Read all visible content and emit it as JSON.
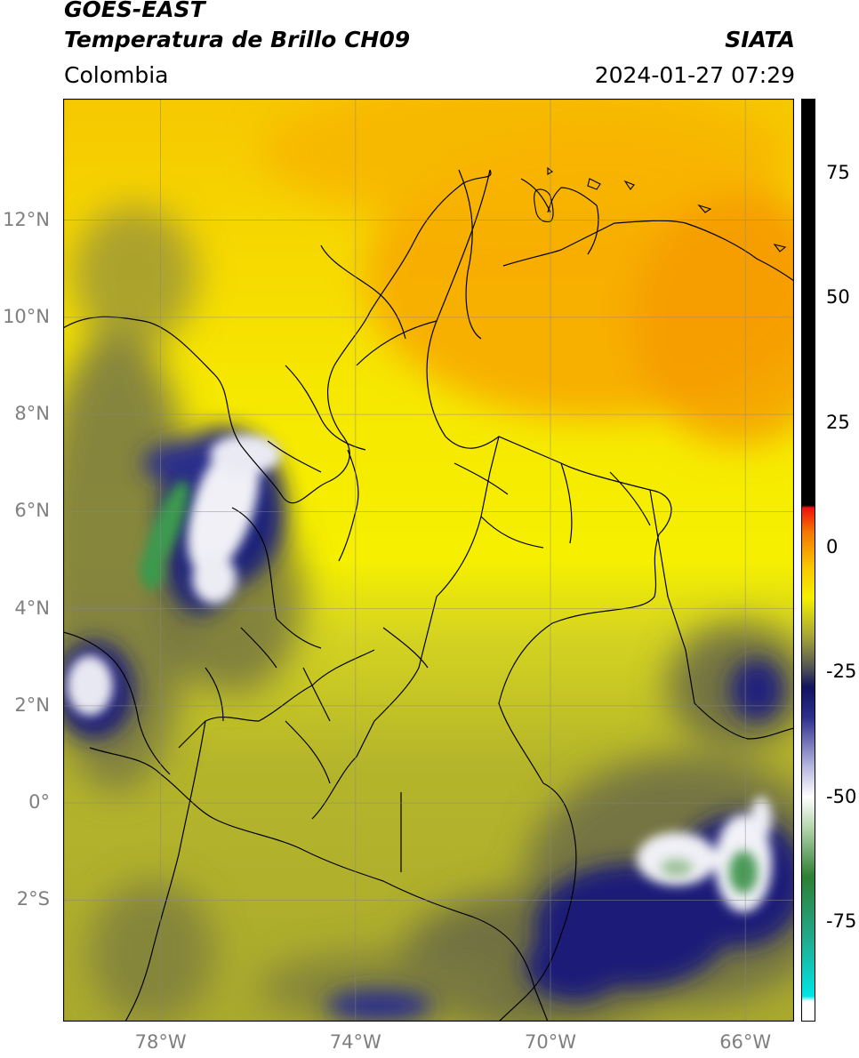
{
  "header": {
    "satellite": "GOES-EAST",
    "product": "Temperatura de Brillo CH09",
    "organization": "SIATA",
    "region": "Colombia",
    "timestamp": "2024-01-27 07:29"
  },
  "map": {
    "lon_range": [
      -80,
      -65
    ],
    "lat_range": [
      -4.5,
      14.5
    ],
    "lat_ticks": [
      {
        "value": 12,
        "label": "12°N"
      },
      {
        "value": 10,
        "label": "10°N"
      },
      {
        "value": 8,
        "label": "8°N"
      },
      {
        "value": 6,
        "label": "6°N"
      },
      {
        "value": 4,
        "label": "4°N"
      },
      {
        "value": 2,
        "label": "2°N"
      },
      {
        "value": 0,
        "label": "0°"
      },
      {
        "value": -2,
        "label": "2°S"
      }
    ],
    "lon_ticks": [
      {
        "value": -78,
        "label": "78°W"
      },
      {
        "value": -74,
        "label": "74°W"
      },
      {
        "value": -70,
        "label": "70°W"
      },
      {
        "value": -66,
        "label": "66°W"
      }
    ],
    "grid": true,
    "colors": {
      "warm_orange": "#f7a800",
      "yellow": "#f6ee00",
      "olive": "#b7b72a",
      "gray": "#5a5a3c",
      "navy": "#1d1f78",
      "white": "#f2f2f2",
      "green": "#3f9a4e"
    }
  },
  "colorbar": {
    "ticks": [
      {
        "value": 75,
        "label": "75"
      },
      {
        "value": 50,
        "label": "50"
      },
      {
        "value": 25,
        "label": "25"
      },
      {
        "value": 0,
        "label": "0"
      },
      {
        "value": -25,
        "label": "-25"
      },
      {
        "value": -50,
        "label": "-50"
      },
      {
        "value": -75,
        "label": "-75"
      }
    ],
    "range": [
      -95,
      90
    ],
    "stops": [
      {
        "value": -95,
        "color": "#ffffff"
      },
      {
        "value": -91,
        "color": "#ffffff"
      },
      {
        "value": -90,
        "color": "#00e5e5"
      },
      {
        "value": -78,
        "color": "#22a98a"
      },
      {
        "value": -66,
        "color": "#2d7f33"
      },
      {
        "value": -56,
        "color": "#b7d7b0"
      },
      {
        "value": -50,
        "color": "#ffffff"
      },
      {
        "value": -44,
        "color": "#b8b8e0"
      },
      {
        "value": -34,
        "color": "#2b2f8c"
      },
      {
        "value": -28,
        "color": "#11135e"
      },
      {
        "value": -24,
        "color": "#545454"
      },
      {
        "value": -18,
        "color": "#a3a33a"
      },
      {
        "value": -10,
        "color": "#f5f000"
      },
      {
        "value": -4,
        "color": "#f9c800"
      },
      {
        "value": 3,
        "color": "#f37a00"
      },
      {
        "value": 8,
        "color": "#f01010"
      },
      {
        "value": 8.5,
        "color": "#000000"
      },
      {
        "value": 90,
        "color": "#000000"
      }
    ]
  }
}
